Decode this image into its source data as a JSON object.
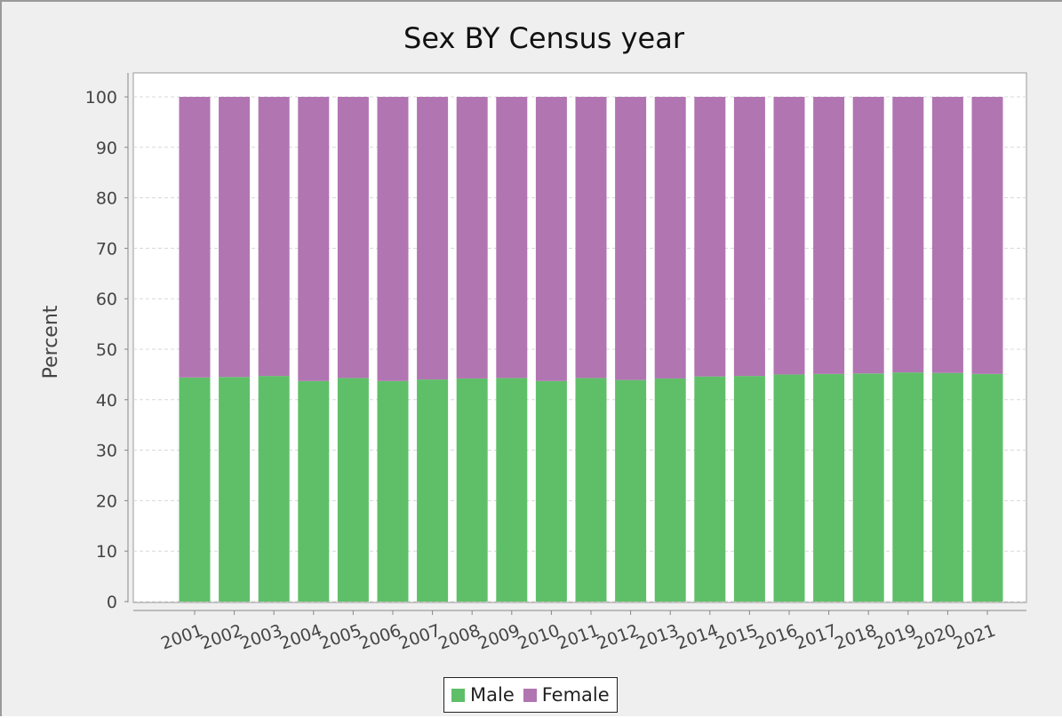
{
  "chart_data": {
    "type": "bar",
    "stacked": true,
    "title": "Sex BY Census year",
    "xlabel": "",
    "ylabel": "Percent",
    "ylim": [
      0,
      100
    ],
    "yticks": [
      0,
      10,
      20,
      30,
      40,
      50,
      60,
      70,
      80,
      90,
      100
    ],
    "grid": true,
    "legend_position": "bottom",
    "categories": [
      "2001",
      "2002",
      "2003",
      "2004",
      "2005",
      "2006",
      "2007",
      "2008",
      "2009",
      "2010",
      "2011",
      "2012",
      "2013",
      "2014",
      "2015",
      "2016",
      "2017",
      "2018",
      "2019",
      "2020",
      "2021"
    ],
    "series": [
      {
        "name": "Male",
        "color": "#5fbf69",
        "values": [
          44.4,
          44.5,
          44.7,
          43.7,
          44.3,
          43.7,
          44.0,
          44.2,
          44.3,
          43.7,
          44.3,
          43.9,
          44.2,
          44.6,
          44.7,
          45.0,
          45.1,
          45.2,
          45.4,
          45.3,
          45.1
        ]
      },
      {
        "name": "Female",
        "color": "#b175b2",
        "values": [
          55.6,
          55.5,
          55.3,
          56.3,
          55.7,
          56.3,
          56.0,
          55.8,
          55.7,
          56.3,
          55.7,
          56.1,
          55.8,
          55.4,
          55.3,
          55.0,
          54.9,
          54.8,
          54.6,
          54.7,
          54.9
        ]
      }
    ]
  }
}
